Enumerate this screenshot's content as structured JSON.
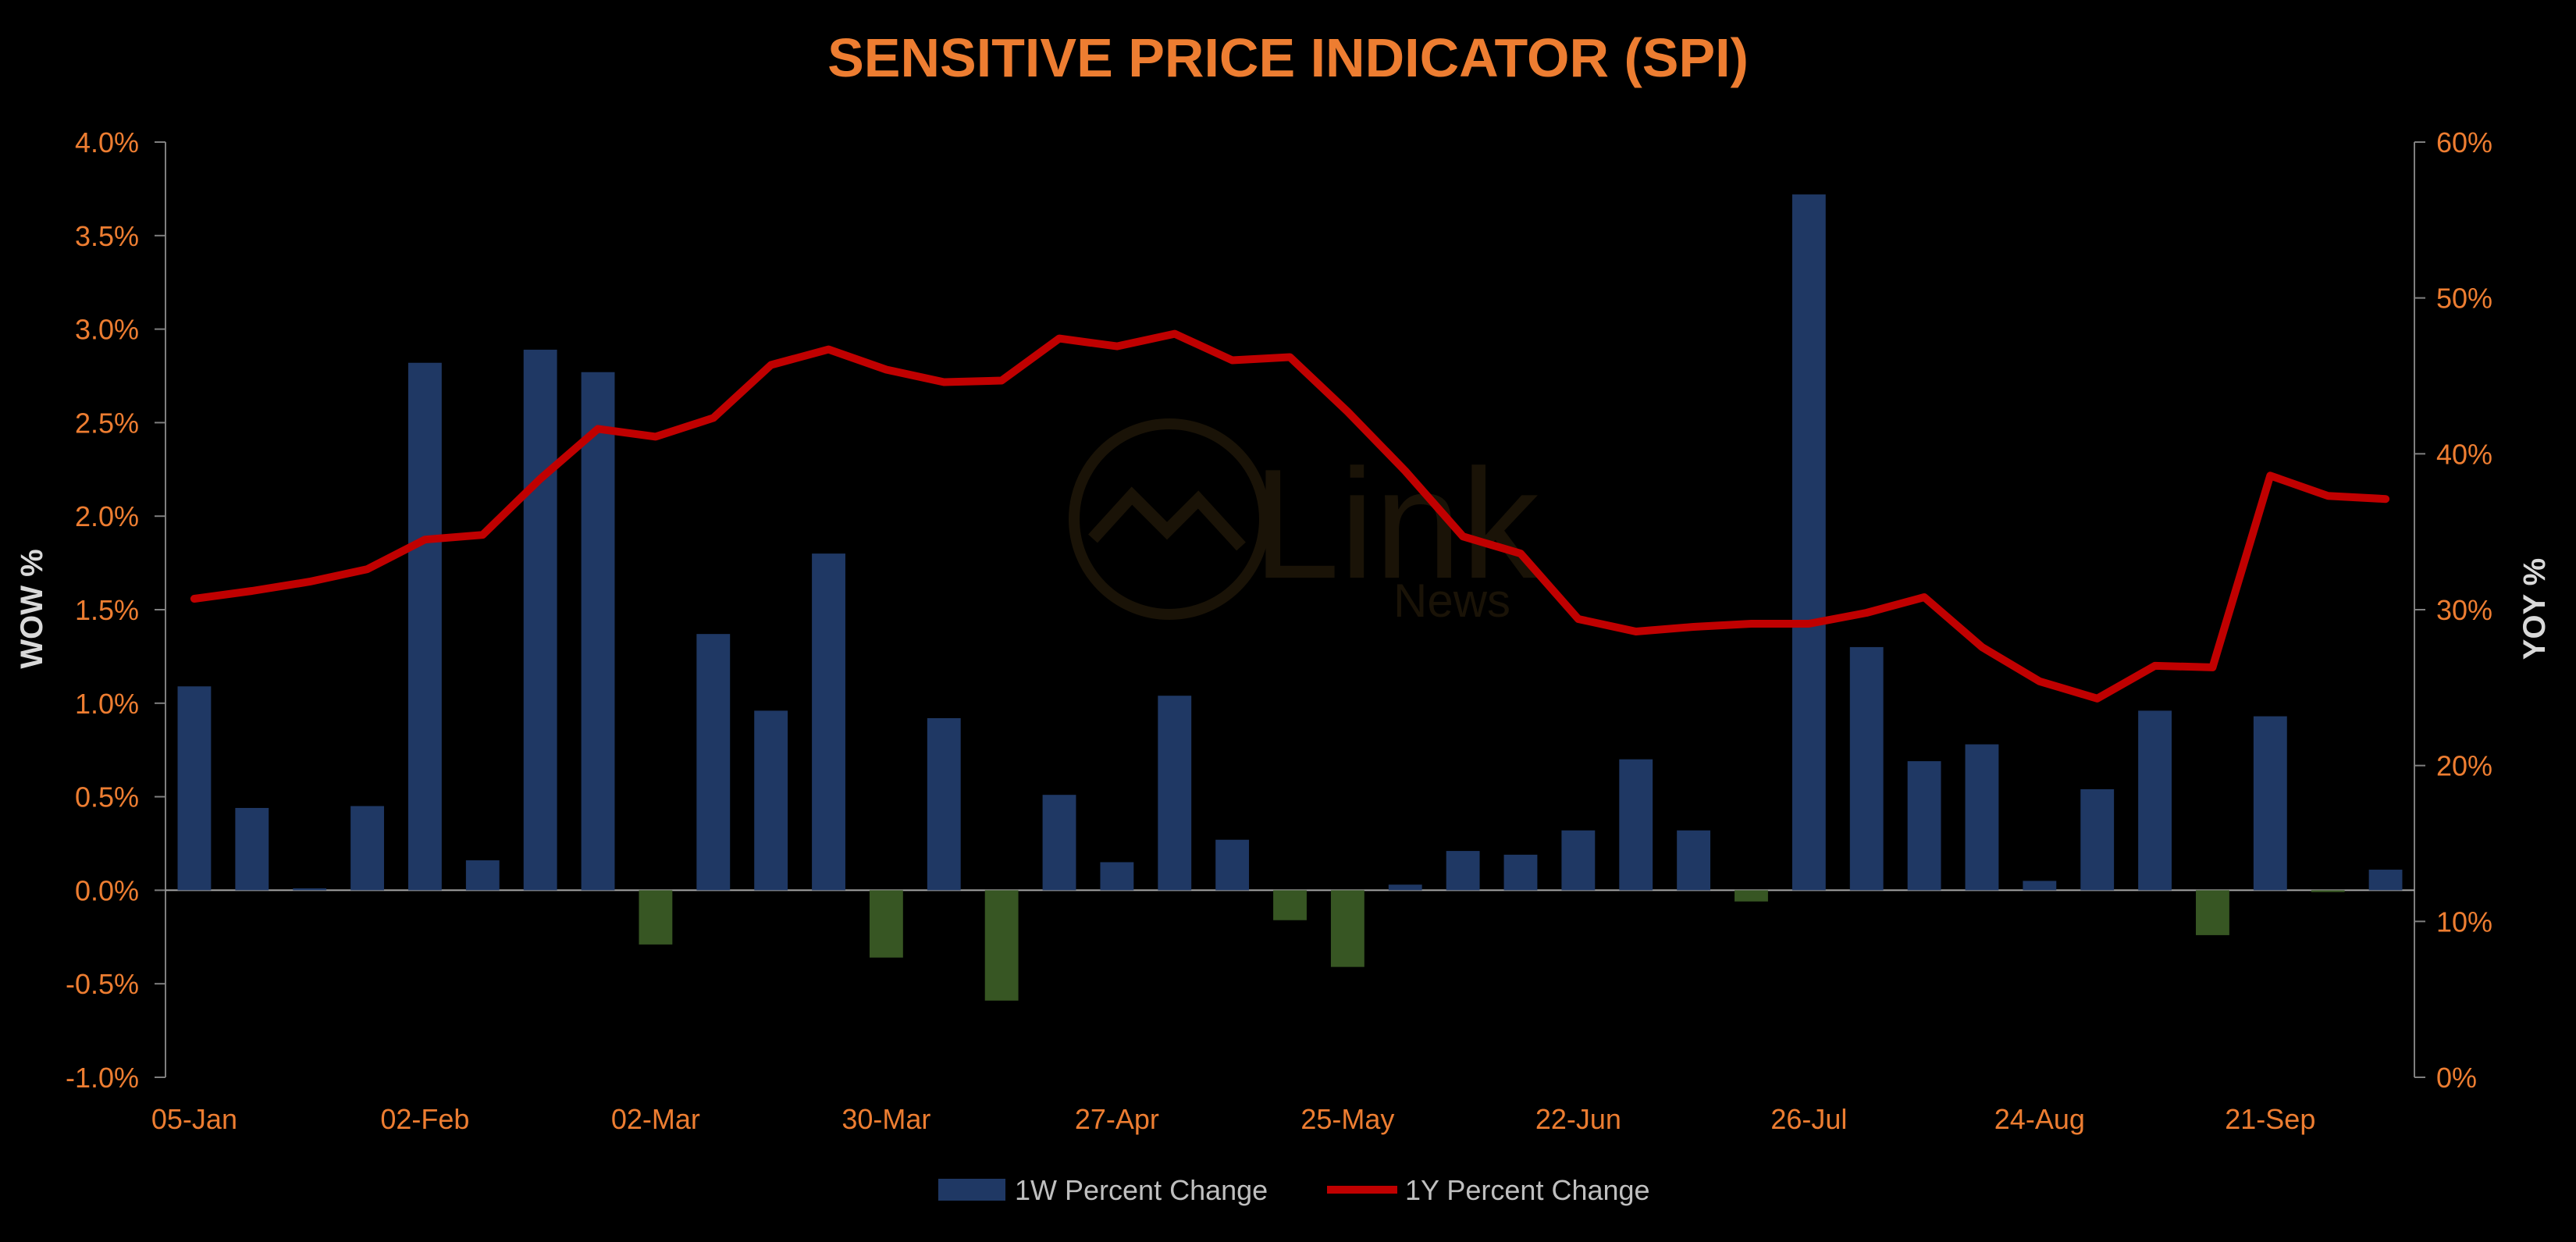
{
  "chart_data": {
    "type": "bar",
    "title": "SENSITIVE PRICE INDICATOR (SPI)",
    "ylabel_left": "WOW %",
    "ylabel_right": "YOY %",
    "ylim_left": [
      -1.0,
      4.0
    ],
    "ylim_right": [
      0,
      60
    ],
    "yticks_left": [
      "-1.0%",
      "-0.5%",
      "0.0%",
      "0.5%",
      "1.0%",
      "1.5%",
      "2.0%",
      "2.5%",
      "3.0%",
      "3.5%",
      "4.0%"
    ],
    "yticks_right": [
      "0%",
      "10%",
      "20%",
      "30%",
      "40%",
      "50%",
      "60%"
    ],
    "x_tick_labels": [
      "05-Jan",
      "02-Feb",
      "02-Mar",
      "30-Mar",
      "27-Apr",
      "25-May",
      "22-Jun",
      "26-Jul",
      "24-Aug",
      "21-Sep"
    ],
    "grid": false,
    "legend_position": "bottom",
    "n_periods": 39,
    "series": [
      {
        "name": "1W Percent Change",
        "type": "bar",
        "axis": "left",
        "color": "#1F3864",
        "negative_color": "#375623",
        "values": [
          1.09,
          0.44,
          0.01,
          0.45,
          2.82,
          0.16,
          2.89,
          2.77,
          -0.29,
          1.37,
          0.96,
          1.8,
          -0.36,
          0.92,
          -0.59,
          0.51,
          0.15,
          1.04,
          0.27,
          -0.16,
          -0.41,
          0.03,
          0.21,
          0.19,
          0.32,
          0.7,
          0.32,
          -0.06,
          3.72,
          1.3,
          0.69,
          0.78,
          0.05,
          0.54,
          0.96,
          -0.24,
          0.93,
          -0.01,
          0.11
        ]
      },
      {
        "name": "1Y Percent Change",
        "type": "line",
        "axis": "right",
        "color": "#C00000",
        "values": [
          30.7,
          31.2,
          31.8,
          32.6,
          34.5,
          34.8,
          38.4,
          41.6,
          41.1,
          42.3,
          45.7,
          46.7,
          45.4,
          44.6,
          44.7,
          47.4,
          46.9,
          47.7,
          46.0,
          46.2,
          42.7,
          38.9,
          34.7,
          33.6,
          29.4,
          28.6,
          28.9,
          29.1,
          29.1,
          29.8,
          30.8,
          27.6,
          25.4,
          24.3,
          26.4,
          26.3,
          38.6,
          37.3,
          37.1
        ]
      }
    ]
  },
  "watermark": {
    "brand": "Link",
    "sub": "News"
  }
}
